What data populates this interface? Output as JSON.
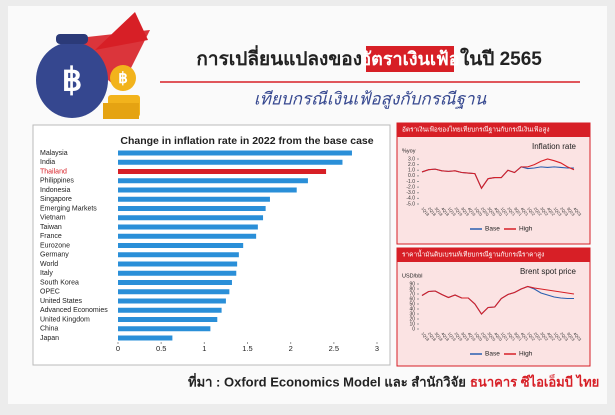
{
  "header": {
    "title_start": "การเปลี่ยนแปลงของ",
    "title_highlight": "อัตราเงินเฟ้อ",
    "title_end": "ในปี 2565",
    "subtitle": "เทียบกรณีเงินเฟ้อสูงกับกรณีฐาน"
  },
  "source": {
    "text": "ที่มา : Oxford Economics Model และ สำนักวิจัย",
    "highlight": "ธนาคาร ซีไอเอ็มบี ไทย"
  },
  "chart_data": [
    {
      "type": "bar",
      "orientation": "horizontal",
      "title": "Change in inflation rate in 2022 from the base case",
      "categories": [
        "Malaysia",
        "India",
        "Thailand",
        "Philippines",
        "Indonesia",
        "Singapore",
        "Emerging Markets",
        "Vietnam",
        "Taiwan",
        "France",
        "Eurozone",
        "Germany",
        "World",
        "Italy",
        "South Korea",
        "OPEC",
        "United States",
        "Advanced Economies",
        "United Kingdom",
        "China",
        "Japan"
      ],
      "values": [
        2.71,
        2.6,
        2.41,
        2.2,
        2.07,
        1.76,
        1.71,
        1.68,
        1.62,
        1.6,
        1.45,
        1.4,
        1.38,
        1.37,
        1.32,
        1.29,
        1.25,
        1.2,
        1.15,
        1.07,
        0.63
      ],
      "colors": [
        "#2a8fd8",
        "#2a8fd8",
        "#d71f26",
        "#2a8fd8",
        "#2a8fd8",
        "#2a8fd8",
        "#2a8fd8",
        "#2a8fd8",
        "#2a8fd8",
        "#2a8fd8",
        "#2a8fd8",
        "#2a8fd8",
        "#2a8fd8",
        "#2a8fd8",
        "#2a8fd8",
        "#2a8fd8",
        "#2a8fd8",
        "#2a8fd8",
        "#2a8fd8",
        "#2a8fd8",
        "#2a8fd8"
      ],
      "highlight_color": "#d71f26",
      "xlim": [
        0,
        3
      ],
      "xticks": [
        0,
        0.5,
        1,
        1.5,
        2,
        2.5,
        3
      ],
      "grid": false
    },
    {
      "type": "line",
      "panel_title": "อัตราเงินเฟ้อของไทยเทียบกรณีฐานกับกรณีเงินเฟ้อสูง",
      "title": "Inflation rate",
      "y_label": "%yoy",
      "categories": [
        "1Q18",
        "2Q18",
        "3Q18",
        "4Q18",
        "1Q19",
        "2Q19",
        "3Q19",
        "4Q19",
        "1Q20",
        "2Q20",
        "3Q20",
        "4Q20",
        "1Q21",
        "2Q21",
        "3Q21",
        "4Q21",
        "1Q22",
        "2Q22",
        "3Q22",
        "4Q22",
        "1Q23",
        "2Q23",
        "3Q23",
        "4Q23"
      ],
      "series": [
        {
          "name": "Base",
          "color": "#2a5fb0",
          "values": [
            0.7,
            1.1,
            1.2,
            0.9,
            0.8,
            0.9,
            0.6,
            0.5,
            0.4,
            -2.2,
            -0.5,
            -0.3,
            -0.3,
            1.0,
            0.6,
            1.6,
            1.3,
            1.4,
            1.6,
            1.5,
            1.6,
            1.5,
            1.4,
            1.4
          ]
        },
        {
          "name": "High",
          "color": "#d71f26",
          "values": [
            0.7,
            1.1,
            1.2,
            0.9,
            0.8,
            0.9,
            0.6,
            0.5,
            0.4,
            -2.2,
            -0.5,
            -0.3,
            -0.3,
            1.0,
            0.6,
            1.6,
            1.6,
            2.0,
            2.6,
            3.0,
            2.7,
            2.3,
            1.6,
            1.1
          ]
        }
      ],
      "ylim": [
        -5,
        3
      ],
      "yticks": [
        {
          "value": 3,
          "label": "3.0"
        },
        {
          "value": 2,
          "label": "2.0"
        },
        {
          "value": 1,
          "label": "1.0"
        },
        {
          "value": 0,
          "label": "0.0"
        },
        {
          "value": -1,
          "label": "-1.0"
        },
        {
          "value": -2,
          "label": "-2.0"
        },
        {
          "value": -3,
          "label": "-3.0"
        },
        {
          "value": -4,
          "label": "-4.0"
        },
        {
          "value": -5,
          "label": "-5.0"
        }
      ]
    },
    {
      "type": "line",
      "panel_title": "ราคาน้ำมันดิบเบรนท์เทียบกรณีฐานกับกรณีราคาสูง",
      "title": "Brent spot price",
      "y_label": "USD/bbl",
      "categories": [
        "1Q18",
        "2Q18",
        "3Q18",
        "4Q18",
        "1Q19",
        "2Q19",
        "3Q19",
        "4Q19",
        "1Q20",
        "2Q20",
        "3Q20",
        "4Q20",
        "1Q21",
        "2Q21",
        "3Q21",
        "4Q21",
        "1Q22",
        "2Q22",
        "3Q22",
        "4Q22",
        "1Q23",
        "2Q23",
        "3Q23",
        "4Q23"
      ],
      "series": [
        {
          "name": "Base",
          "color": "#2a5fb0",
          "values": [
            67,
            75,
            76,
            69,
            63,
            68,
            62,
            62,
            50,
            30,
            43,
            44,
            61,
            69,
            73,
            80,
            85,
            80,
            72,
            68,
            64,
            62,
            61,
            61
          ]
        },
        {
          "name": "High",
          "color": "#d71f26",
          "values": [
            67,
            75,
            76,
            69,
            63,
            68,
            62,
            62,
            50,
            30,
            43,
            44,
            61,
            69,
            73,
            80,
            85,
            82,
            80,
            78,
            76,
            74,
            72,
            70
          ]
        }
      ],
      "ylim": [
        0,
        90
      ],
      "yticks": [
        90,
        80,
        70,
        60,
        50,
        40,
        30,
        20,
        10,
        0
      ]
    }
  ]
}
